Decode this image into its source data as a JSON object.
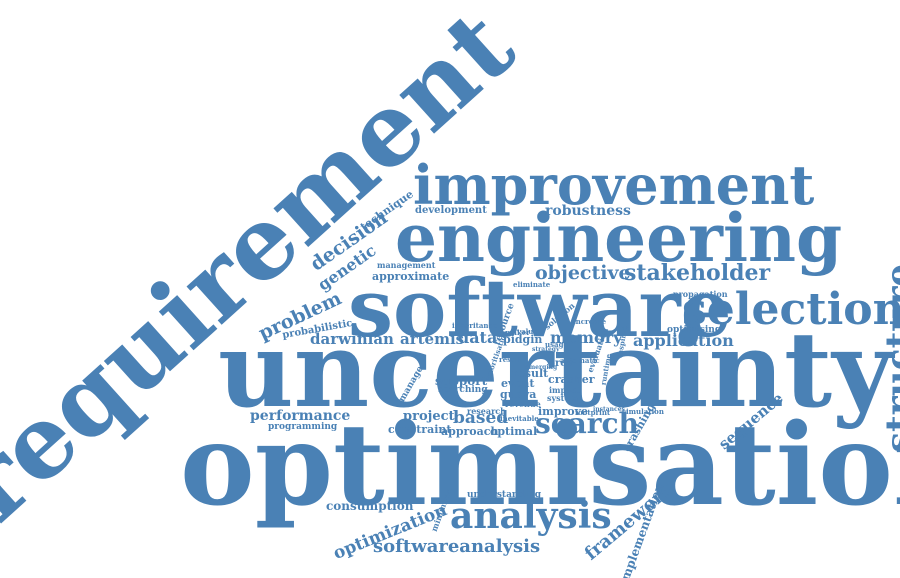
{
  "cloud": {
    "color": "#4a81b5",
    "words": [
      {
        "key": "requirement",
        "text": "requirement"
      },
      {
        "key": "improvement",
        "text": "improvement"
      },
      {
        "key": "engineering",
        "text": "engineering"
      },
      {
        "key": "software",
        "text": "software"
      },
      {
        "key": "selection",
        "text": "selection"
      },
      {
        "key": "uncertainty",
        "text": "uncertainty"
      },
      {
        "key": "optimisation",
        "text": "optimisation"
      },
      {
        "key": "structure",
        "text": "structure"
      },
      {
        "key": "analysis",
        "text": "analysis"
      },
      {
        "key": "softwareanalysis",
        "text": "softwareanalysis"
      },
      {
        "key": "optimization",
        "text": "optimization"
      },
      {
        "key": "framework",
        "text": "framework"
      },
      {
        "key": "implementation",
        "text": "implementation"
      },
      {
        "key": "search",
        "text": "search"
      },
      {
        "key": "sequence",
        "text": "sequence"
      },
      {
        "key": "stakeholder",
        "text": "stakeholder"
      },
      {
        "key": "objective",
        "text": "objective"
      },
      {
        "key": "robustness",
        "text": "robustness"
      },
      {
        "key": "development",
        "text": "development"
      },
      {
        "key": "technique",
        "text": "technique"
      },
      {
        "key": "decision",
        "text": "decision"
      },
      {
        "key": "genetic",
        "text": "genetic"
      },
      {
        "key": "problem",
        "text": "problem"
      },
      {
        "key": "probabilistic",
        "text": "probabilistic"
      },
      {
        "key": "approximate",
        "text": "approximate"
      },
      {
        "key": "management",
        "text": "management"
      },
      {
        "key": "darwinian",
        "text": "darwinian"
      },
      {
        "key": "artemis",
        "text": "artemis"
      },
      {
        "key": "data",
        "text": "data"
      },
      {
        "key": "memory",
        "text": "memory"
      },
      {
        "key": "application",
        "text": "application"
      },
      {
        "key": "propagation",
        "text": "propagation"
      },
      {
        "key": "optimising",
        "text": "optimising"
      },
      {
        "key": "performance",
        "text": "performance"
      },
      {
        "key": "programming",
        "text": "programming"
      },
      {
        "key": "project",
        "text": "project"
      },
      {
        "key": "based",
        "text": "based"
      },
      {
        "key": "constraint",
        "text": "constraint"
      },
      {
        "key": "approach",
        "text": "approach"
      },
      {
        "key": "optimal",
        "text": "optimal"
      },
      {
        "key": "support",
        "text": "support"
      },
      {
        "key": "searching",
        "text": "searching"
      },
      {
        "key": "manage",
        "text": "manage"
      },
      {
        "key": "result",
        "text": "result"
      },
      {
        "key": "event",
        "text": "event"
      },
      {
        "key": "guava",
        "text": "guava"
      },
      {
        "key": "revenue",
        "text": "revenue"
      },
      {
        "key": "research",
        "text": "research"
      },
      {
        "key": "improve",
        "text": "improve"
      },
      {
        "key": "crasher",
        "text": "crasher"
      },
      {
        "key": "impact",
        "text": "impact"
      },
      {
        "key": "system",
        "text": "system"
      },
      {
        "key": "crashing",
        "text": "crashing"
      },
      {
        "key": "simulation",
        "text": "simulation"
      },
      {
        "key": "footprint",
        "text": "footprint"
      },
      {
        "key": "instances",
        "text": "instances"
      },
      {
        "key": "consumption",
        "text": "consumption"
      },
      {
        "key": "minimised",
        "text": "minimised"
      },
      {
        "key": "understanding",
        "text": "understanding"
      },
      {
        "key": "solution",
        "text": "solution"
      },
      {
        "key": "pidgin",
        "text": "pidgin"
      },
      {
        "key": "maker",
        "text": "maker"
      },
      {
        "key": "inheritance",
        "text": "inheritance"
      },
      {
        "key": "resource",
        "text": "resource"
      },
      {
        "key": "eliminate",
        "text": "eliminate"
      },
      {
        "key": "inevitable",
        "text": "inevitable"
      },
      {
        "key": "prioritisation",
        "text": "prioritisation"
      },
      {
        "key": "value",
        "text": "value"
      },
      {
        "key": "usage",
        "text": "usage"
      },
      {
        "key": "evaluation",
        "text": "evaluation"
      },
      {
        "key": "increase",
        "text": "increase"
      },
      {
        "key": "prov",
        "text": "prov"
      },
      {
        "key": "inspired",
        "text": "inspired"
      },
      {
        "key": "runtime",
        "text": "runtime"
      },
      {
        "key": "automatic",
        "text": "automatic"
      },
      {
        "key": "result2",
        "text": "result"
      },
      {
        "key": "strategy",
        "text": "strategy"
      },
      {
        "key": "emerging",
        "text": "emerging"
      }
    ]
  }
}
